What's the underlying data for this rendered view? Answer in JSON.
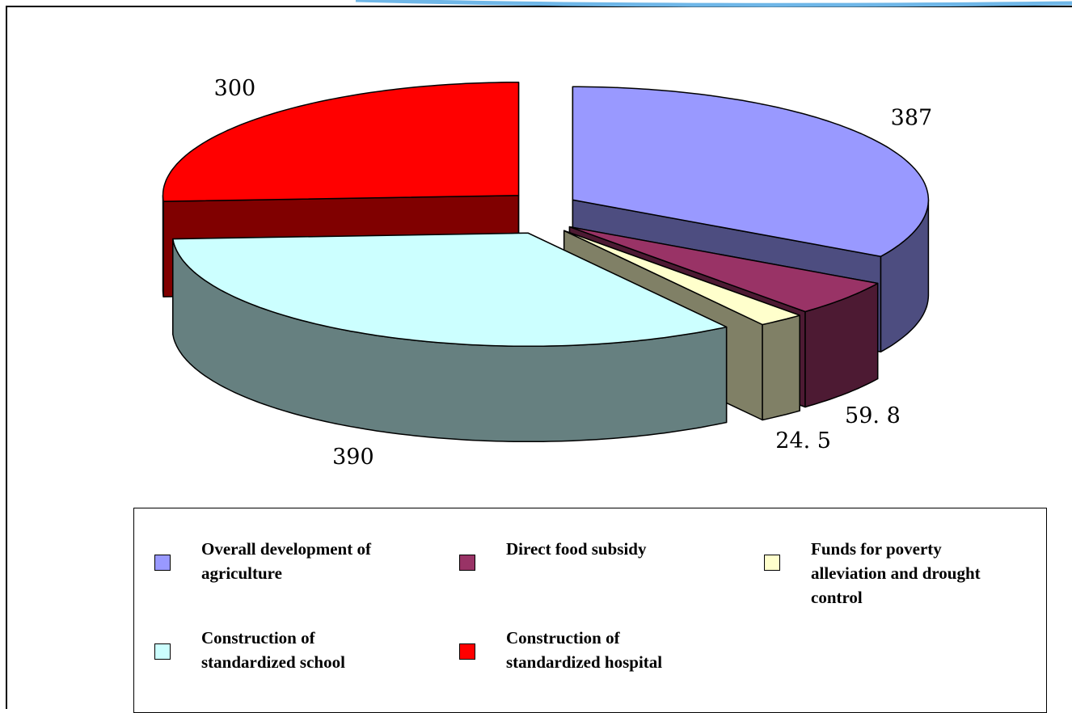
{
  "chart_data": {
    "type": "pie3d",
    "categories": [
      "Overall development of agriculture",
      "Direct food subsidy",
      "Funds for poverty alleviation and drought control",
      "Construction of standardized school",
      "Construction of standardized hospital"
    ],
    "values": [
      387,
      59.8,
      24.5,
      390,
      300
    ],
    "value_labels": [
      "387",
      "59. 8",
      "24. 5",
      "390",
      "300"
    ],
    "colors": [
      "#9999ff",
      "#993366",
      "#ffffcc",
      "#ccffff",
      "#ff0000"
    ],
    "legend": "bottom"
  }
}
